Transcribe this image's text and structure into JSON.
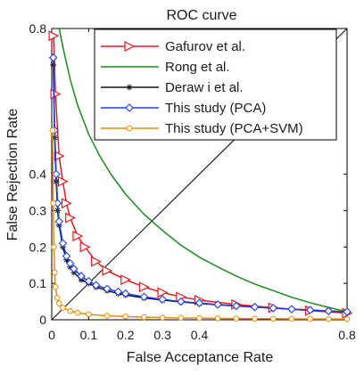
{
  "chart_data": {
    "type": "line",
    "title": "ROC curve",
    "xlabel": "False Acceptance Rate",
    "ylabel": "False Rejection Rate",
    "xlim": [
      0,
      0.8
    ],
    "ylim": [
      0,
      0.8
    ],
    "xticks": [
      0,
      0.1,
      0.2,
      0.3,
      0.4,
      0.8
    ],
    "xtick_labels": [
      "0",
      "0.1",
      "0.2",
      "0.3",
      "0.4",
      "0.8"
    ],
    "yticks": [
      0,
      0.1,
      0.2,
      0.3,
      0.4,
      0.8
    ],
    "ytick_labels": [
      "0",
      "0.1",
      "0.2",
      "0.3",
      "0.4",
      "0.8"
    ],
    "legend_position": "top-right",
    "grid": false,
    "reference_line": {
      "x": [
        0,
        0.8
      ],
      "y": [
        0,
        0.8
      ],
      "color": "#000000"
    },
    "series": [
      {
        "name": "Gafurov et al.",
        "color": "#e8191e",
        "marker": "triangle-right",
        "x": [
          0.005,
          0.01,
          0.02,
          0.03,
          0.04,
          0.05,
          0.07,
          0.09,
          0.12,
          0.15,
          0.2,
          0.25,
          0.3,
          0.35,
          0.4,
          0.5,
          0.6,
          0.7,
          0.8
        ],
        "y": [
          0.78,
          0.62,
          0.45,
          0.38,
          0.32,
          0.28,
          0.23,
          0.2,
          0.16,
          0.135,
          0.11,
          0.09,
          0.075,
          0.063,
          0.054,
          0.042,
          0.033,
          0.025,
          0.018
        ]
      },
      {
        "name": "Rong et al.",
        "color": "#1a8a1a",
        "marker": "none",
        "x": [
          0.02,
          0.03,
          0.05,
          0.07,
          0.1,
          0.13,
          0.16,
          0.2,
          0.25,
          0.3,
          0.35,
          0.4,
          0.45,
          0.5,
          0.55,
          0.6,
          0.65,
          0.7,
          0.75,
          0.8
        ],
        "y": [
          0.8,
          0.75,
          0.66,
          0.59,
          0.51,
          0.45,
          0.4,
          0.345,
          0.29,
          0.245,
          0.205,
          0.172,
          0.145,
          0.12,
          0.098,
          0.08,
          0.062,
          0.047,
          0.034,
          0.022
        ]
      },
      {
        "name": "Deraw i et al.",
        "color": "#111111",
        "marker": "asterisk",
        "x": [
          0.004,
          0.008,
          0.012,
          0.016,
          0.02,
          0.03,
          0.04,
          0.05,
          0.06,
          0.08,
          0.1,
          0.12,
          0.15,
          0.18,
          0.2,
          0.25,
          0.3,
          0.35,
          0.4,
          0.45,
          0.5,
          0.55,
          0.6,
          0.65,
          0.7,
          0.75,
          0.8
        ],
        "y": [
          0.7,
          0.5,
          0.38,
          0.3,
          0.26,
          0.2,
          0.165,
          0.145,
          0.13,
          0.11,
          0.1,
          0.09,
          0.08,
          0.072,
          0.068,
          0.06,
          0.054,
          0.049,
          0.045,
          0.041,
          0.038,
          0.035,
          0.032,
          0.029,
          0.027,
          0.024,
          0.022
        ]
      },
      {
        "name": "This study (PCA)",
        "color": "#1f3fe0",
        "marker": "diamond",
        "x": [
          0.004,
          0.008,
          0.012,
          0.016,
          0.02,
          0.03,
          0.04,
          0.05,
          0.06,
          0.08,
          0.1,
          0.12,
          0.15,
          0.18,
          0.2,
          0.25,
          0.3,
          0.35,
          0.4,
          0.45,
          0.5,
          0.55,
          0.6,
          0.65,
          0.7,
          0.75,
          0.8
        ],
        "y": [
          0.72,
          0.52,
          0.4,
          0.32,
          0.27,
          0.21,
          0.175,
          0.155,
          0.14,
          0.12,
          0.106,
          0.095,
          0.085,
          0.077,
          0.072,
          0.063,
          0.056,
          0.05,
          0.046,
          0.042,
          0.038,
          0.035,
          0.032,
          0.029,
          0.027,
          0.024,
          0.022
        ]
      },
      {
        "name": "This study (PCA+SVM)",
        "color": "#f08a00",
        "marker": "circle",
        "x": [
          0.002,
          0.004,
          0.006,
          0.008,
          0.01,
          0.015,
          0.02,
          0.03,
          0.05,
          0.07,
          0.1,
          0.15,
          0.2,
          0.25,
          0.3,
          0.35,
          0.4,
          0.45,
          0.5,
          0.55,
          0.6,
          0.65,
          0.7,
          0.75,
          0.8
        ],
        "y": [
          0.52,
          0.32,
          0.2,
          0.13,
          0.09,
          0.06,
          0.045,
          0.033,
          0.024,
          0.019,
          0.015,
          0.011,
          0.009,
          0.007,
          0.006,
          0.005,
          0.0045,
          0.004,
          0.0035,
          0.003,
          0.003,
          0.0025,
          0.0025,
          0.002,
          0.002
        ]
      }
    ]
  }
}
